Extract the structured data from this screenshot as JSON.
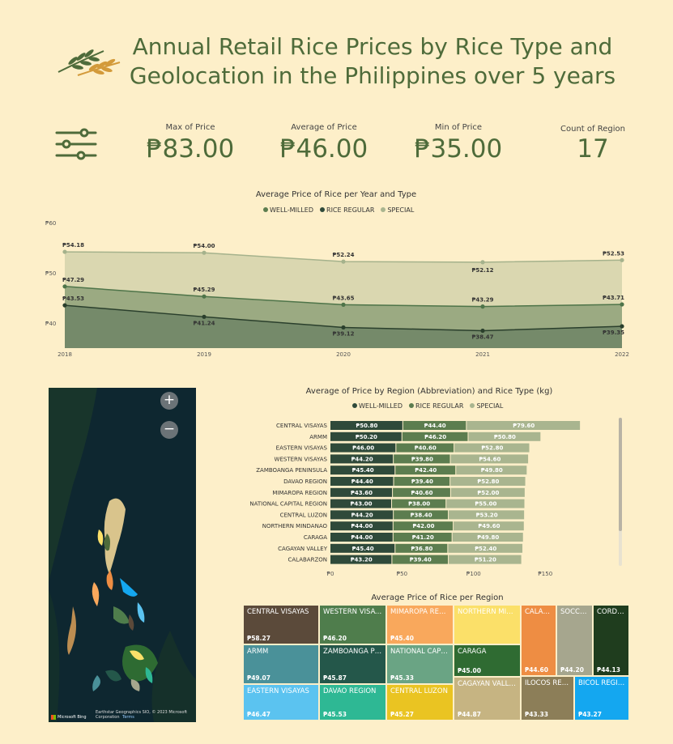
{
  "title": "Annual Retail Rice Prices by Rice Type and Geolocation in the Philippines over 5 years",
  "icons": {
    "logo": "wheat-icon",
    "filter": "slider-filter-icon"
  },
  "kpis": [
    {
      "label": "Max of Price",
      "value": "₱83.00"
    },
    {
      "label": "Average of Price",
      "value": "₱46.00"
    },
    {
      "label": "Min of Price",
      "value": "₱35.00"
    },
    {
      "label": "Count of Region",
      "value": "17"
    }
  ],
  "colors": {
    "background": "#fdefc9",
    "well_milled": "#5c7d4f",
    "rice_regular": "#2f4a3a",
    "special": "#a9b58f",
    "accent": "#4e6b3a"
  },
  "chart_data": [
    {
      "type": "area",
      "title": "Average Price of Rice per Year and Type",
      "x": [
        "2018",
        "2019",
        "2020",
        "2021",
        "2022"
      ],
      "y_ticks": [
        "₱40",
        "₱50",
        "₱60"
      ],
      "ylim": [
        35,
        60
      ],
      "legend_position": "top-center",
      "series": [
        {
          "name": "WELL-MILLED",
          "values": [
            47.29,
            45.29,
            43.65,
            43.29,
            43.71
          ],
          "labels": [
            "₱47.29",
            "₱45.29",
            "₱43.65",
            "₱43.29",
            "₱43.71"
          ]
        },
        {
          "name": "RICE REGULAR",
          "values": [
            43.53,
            41.24,
            39.12,
            38.47,
            39.35
          ],
          "labels": [
            "₱43.53",
            "₱41.24",
            "₱39.12",
            "₱38.47",
            "₱39.35"
          ]
        },
        {
          "name": "SPECIAL",
          "values": [
            54.18,
            54.0,
            52.24,
            52.12,
            52.53
          ],
          "labels": [
            "₱54.18",
            "₱54.00",
            "₱52.24",
            "₱52.12",
            "₱52.53"
          ]
        }
      ]
    },
    {
      "type": "bar",
      "orientation": "horizontal-stacked",
      "title": "Average of Price by Region (Abbreviation) and Rice Type (kg)",
      "categories": [
        "CENTRAL VISAYAS",
        "ARMM",
        "EASTERN VISAYAS",
        "WESTERN VISAYAS",
        "ZAMBOANGA PENINSULA",
        "DAVAO REGION",
        "MIMAROPA REGION",
        "NATIONAL CAPITAL REGION",
        "CENTRAL LUZON",
        "NORTHERN MINDANAO",
        "CARAGA",
        "CAGAYAN VALLEY",
        "CALABARZON"
      ],
      "x_ticks": [
        "₱0",
        "₱50",
        "₱100",
        "₱150"
      ],
      "xlim": [
        0,
        190
      ],
      "series": [
        {
          "name": "WELL-MILLED",
          "values": [
            50.8,
            50.2,
            46.0,
            44.2,
            45.4,
            44.4,
            43.6,
            43.0,
            44.2,
            44.0,
            44.0,
            45.4,
            43.2
          ],
          "labels": [
            "₱50.80",
            "₱50.20",
            "₱46.00",
            "₱44.20",
            "₱45.40",
            "₱44.40",
            "₱43.60",
            "₱43.00",
            "₱44.20",
            "₱44.00",
            "₱44.00",
            "₱45.40",
            "₱43.20"
          ]
        },
        {
          "name": "RICE REGULAR",
          "values": [
            44.4,
            46.2,
            40.6,
            39.8,
            42.4,
            39.4,
            40.6,
            38.0,
            38.4,
            42.0,
            41.2,
            36.8,
            39.4
          ],
          "labels": [
            "₱44.40",
            "₱46.20",
            "₱40.60",
            "₱39.80",
            "₱42.40",
            "₱39.40",
            "₱40.60",
            "₱38.00",
            "₱38.40",
            "₱42.00",
            "₱41.20",
            "₱36.80",
            "₱39.40"
          ]
        },
        {
          "name": "SPECIAL",
          "values": [
            79.6,
            50.8,
            52.8,
            54.6,
            49.8,
            52.8,
            52.0,
            55.0,
            53.2,
            49.6,
            49.8,
            52.4,
            51.2
          ],
          "labels": [
            "₱79.60",
            "₱50.80",
            "₱52.80",
            "₱54.60",
            "₱49.80",
            "₱52.80",
            "₱52.00",
            "₱55.00",
            "₱53.20",
            "₱49.60",
            "₱49.80",
            "₱52.40",
            "₱51.20"
          ]
        }
      ]
    },
    {
      "type": "treemap",
      "title": "Average Price of Rice per Region",
      "items": [
        {
          "name": "CENTRAL VISAYAS",
          "value": 58.27,
          "label": "₱58.27",
          "color": "#5b4a3a"
        },
        {
          "name": "ARMM",
          "value": 49.07,
          "label": "₱49.07",
          "color": "#4a9199"
        },
        {
          "name": "EASTERN VISAYAS",
          "value": 46.47,
          "label": "₱46.47",
          "color": "#5bc3f0"
        },
        {
          "name": "WESTERN VISAYAS",
          "value": 46.2,
          "label": "₱46.20",
          "color": "#4f7d4c"
        },
        {
          "name": "ZAMBOANGA PE...",
          "value": 45.87,
          "label": "₱45.87",
          "color": "#24574a"
        },
        {
          "name": "DAVAO REGION",
          "value": 45.53,
          "label": "₱45.53",
          "color": "#2eb894"
        },
        {
          "name": "MIMAROPA REGI...",
          "value": 45.4,
          "label": "₱45.40",
          "color": "#f9a85c"
        },
        {
          "name": "NATIONAL CAPIT...",
          "value": 45.33,
          "label": "₱45.33",
          "color": "#6aa484"
        },
        {
          "name": "CENTRAL LUZON",
          "value": 45.27,
          "label": "₱45.27",
          "color": "#eac422"
        },
        {
          "name": "NORTHERN MIN...",
          "value": 45.0,
          "label": "",
          "color": "#fbe069"
        },
        {
          "name": "CARAGA",
          "value": 45.0,
          "label": "₱45.00",
          "color": "#2f6b32"
        },
        {
          "name": "CAGAYAN VALLEY",
          "value": 44.87,
          "label": "₱44.87",
          "color": "#c6b482"
        },
        {
          "name": "CALABA...",
          "value": 44.6,
          "label": "₱44.60",
          "color": "#ee8d43"
        },
        {
          "name": "SOCCSK...",
          "value": 44.2,
          "label": "₱44.20",
          "color": "#a6a68e"
        },
        {
          "name": "CORDIL...",
          "value": 44.13,
          "label": "₱44.13",
          "color": "#1f3d1e"
        },
        {
          "name": "ILOCOS REGI...",
          "value": 43.33,
          "label": "₱43.33",
          "color": "#8c7e58"
        },
        {
          "name": "BICOL REGION",
          "value": 43.27,
          "label": "₱43.27",
          "color": "#14a7f0"
        }
      ]
    }
  ],
  "map": {
    "zoom_in": "+",
    "zoom_out": "−",
    "attribution": "Earthstar Geographics SIO, © 2023 Microsoft Corporation",
    "terms": "Terms",
    "provider": "Microsoft Bing"
  }
}
